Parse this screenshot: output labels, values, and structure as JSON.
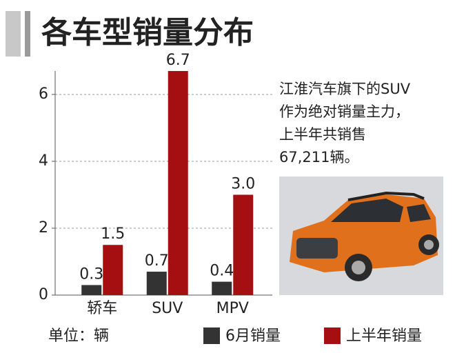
{
  "chart_data": {
    "type": "bar",
    "title": "各车型销量分布",
    "categories": [
      "轿车",
      "SUV",
      "MPV"
    ],
    "series": [
      {
        "name": "6月销量",
        "color": "#333333",
        "values": [
          0.3,
          0.7,
          0.4
        ],
        "value_labels": [
          "0.3",
          "0.7",
          "0.4"
        ]
      },
      {
        "name": "上半年销量",
        "color": "#a50f12",
        "values": [
          1.5,
          6.7,
          3.0
        ],
        "value_labels": [
          "1.5",
          "6.7",
          "3.0"
        ]
      }
    ],
    "ylim": [
      0,
      6.7
    ],
    "yticks": [
      0,
      2,
      4,
      6
    ],
    "grid": true,
    "unit_label": "单位：辆",
    "annotation": [
      "江淮汽车旗下的SUV",
      "作为绝对销量主力，",
      "上半年共销售",
      "67,211辆。"
    ]
  }
}
